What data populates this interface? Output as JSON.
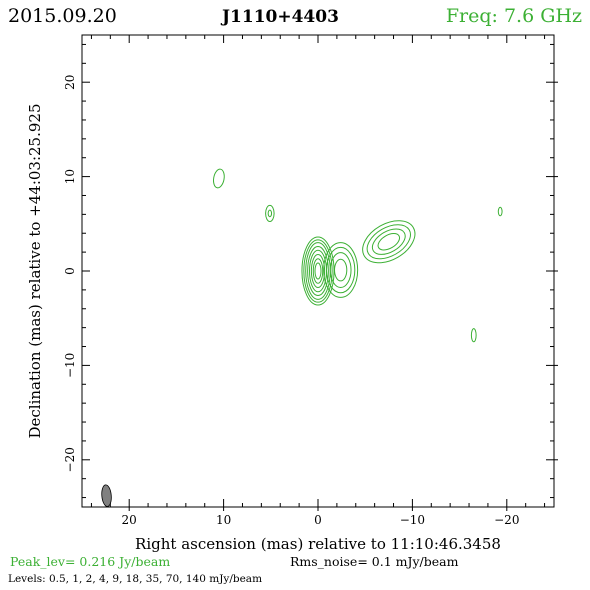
{
  "header": {
    "date": "2015.09.20",
    "source": "J1110+4403",
    "freq": "Freq: 7.6 GHz"
  },
  "axes": {
    "xlabel": "Right ascension (mas) relative to 11:10:46.3458",
    "ylabel": "Declination (mas) relative to +44:03:25.925",
    "x_range": [
      25,
      -25
    ],
    "y_range": [
      -25,
      25
    ],
    "x_ticks": [
      20,
      10,
      0,
      -10,
      -20
    ],
    "x_tick_labels": [
      "20",
      "10",
      "0",
      "−10",
      "−20"
    ],
    "y_ticks": [
      -20,
      -10,
      0,
      10,
      20
    ],
    "y_tick_labels": [
      "−20",
      "−10",
      "0",
      "10",
      "20"
    ],
    "x_minor_step": 2,
    "y_minor_step": 2
  },
  "footer": {
    "peak": "Peak_lev=  0.216 Jy/beam",
    "rms": "Rms_noise=  0.1 mJy/beam",
    "levels": "Levels: 0.5,    1,    2,    4,    9,   18,   35,   70, 140 mJy/beam"
  },
  "colors": {
    "header_date": "#000000",
    "header_source": "#000000",
    "header_freq": "#3cb034",
    "contour": "#3cb034",
    "peak_text": "#3cb034",
    "beam_fill": "#808080",
    "frame": "#000000"
  },
  "beam": {
    "ra": 22.4,
    "dec": -23.8,
    "major_mas": 2.3,
    "minor_mas": 1.0,
    "pa_deg": -5
  },
  "chart_data": {
    "type": "contour",
    "units": "mas",
    "levels_mJy_per_beam": [
      0.5,
      1,
      2,
      4,
      9,
      18,
      35,
      70,
      140
    ],
    "peak_Jy_per_beam": 0.216,
    "rms_noise_mJy_per_beam": 0.1,
    "components": [
      {
        "name": "core",
        "ra": 0.0,
        "dec": 0.0,
        "contours": [
          {
            "rx": 1.7,
            "ry": 3.6,
            "angle": 0
          },
          {
            "rx": 1.5,
            "ry": 3.3,
            "angle": 0
          },
          {
            "rx": 1.3,
            "ry": 3.0,
            "angle": 0
          },
          {
            "rx": 1.1,
            "ry": 2.6,
            "angle": 0
          },
          {
            "rx": 0.9,
            "ry": 2.2,
            "angle": 0
          },
          {
            "rx": 0.7,
            "ry": 1.75,
            "angle": 0
          },
          {
            "rx": 0.5,
            "ry": 1.3,
            "angle": 0
          },
          {
            "rx": 0.32,
            "ry": 0.85,
            "angle": 0
          }
        ]
      },
      {
        "name": "inner-jet",
        "ra": -2.4,
        "dec": 0.1,
        "contours": [
          {
            "rx": 1.8,
            "ry": 2.9,
            "angle": 0
          },
          {
            "rx": 1.5,
            "ry": 2.4,
            "angle": 0
          },
          {
            "rx": 1.1,
            "ry": 1.85,
            "angle": 0
          },
          {
            "rx": 0.65,
            "ry": 1.15,
            "angle": 0
          }
        ]
      },
      {
        "name": "outer-jet",
        "ra": -7.5,
        "dec": 3.1,
        "contours": [
          {
            "rx": 3.0,
            "ry": 1.9,
            "angle": -30
          },
          {
            "rx": 2.5,
            "ry": 1.5,
            "angle": -30
          },
          {
            "rx": 1.9,
            "ry": 1.1,
            "angle": -30
          },
          {
            "rx": 1.25,
            "ry": 0.7,
            "angle": -30
          }
        ]
      },
      {
        "name": "blob-1",
        "ra": 10.5,
        "dec": 9.8,
        "contours": [
          {
            "rx": 0.55,
            "ry": 1.0,
            "angle": 10
          }
        ]
      },
      {
        "name": "blob-2",
        "ra": 5.1,
        "dec": 6.1,
        "contours": [
          {
            "rx": 0.45,
            "ry": 0.85,
            "angle": 0
          },
          {
            "rx": 0.18,
            "ry": 0.35,
            "angle": 0
          }
        ]
      },
      {
        "name": "blob-3",
        "ra": -19.3,
        "dec": 6.3,
        "contours": [
          {
            "rx": 0.2,
            "ry": 0.45,
            "angle": 0
          }
        ]
      },
      {
        "name": "blob-4",
        "ra": -16.5,
        "dec": -6.8,
        "contours": [
          {
            "rx": 0.25,
            "ry": 0.7,
            "angle": 0
          }
        ]
      }
    ]
  }
}
